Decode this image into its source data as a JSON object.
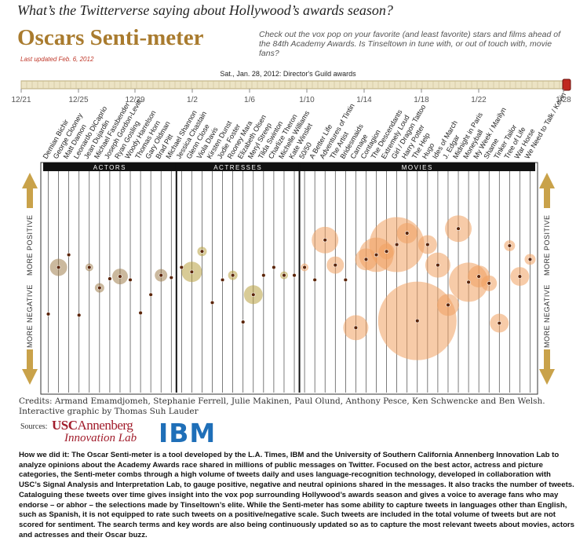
{
  "header": {
    "kicker": "What’s the Twitterverse saying about Hollywood’s awards season?",
    "title": "Oscars Senti-meter",
    "description": "Check out the vox pop on your favorite (and least favorite) stars and films ahead of the 84th Academy Awards. Is Tinseltown in tune with, or out of touch with, movie fans?",
    "updated": "Last updated Feb. 6, 2012"
  },
  "timeline": {
    "label": "Sat., Jan. 28, 2012: Director's Guild awards",
    "ticks": [
      "12/21",
      "12/25",
      "12/29",
      "1/2",
      "1/6",
      "1/10",
      "1/14",
      "1/18",
      "1/22",
      "1/28"
    ]
  },
  "chart_data": {
    "type": "bubble",
    "ylim": [
      -1,
      1
    ],
    "positive_label": "MORE POSITIVE",
    "negative_label": "MORE NEGATIVE",
    "series": [
      {
        "name": "ACTORS",
        "color": "#a0804f",
        "categories": [
          "Demian Bichir",
          "George Clooney",
          "Matt Damon",
          "Leonardo DiCaprio",
          "Jean Dujardin",
          "Michael Fassbender",
          "Joseph Gordon-Levitt",
          "Ryan Gosling",
          "Woody Harrelson",
          "Thomas Horn",
          "Gary Oldman",
          "Brad Pitt",
          "Michael Shannon"
        ],
        "values": [
          -0.31,
          0.1,
          0.21,
          -0.32,
          0.1,
          -0.08,
          0,
          0.02,
          -0.01,
          -0.3,
          -0.14,
          0.03,
          0.01
        ],
        "sizes": [
          0,
          121,
          0,
          0,
          25,
          36,
          0,
          100,
          0,
          0,
          0,
          64,
          0
        ]
      },
      {
        "name": "ACTRESSES",
        "color": "#b8a040",
        "categories": [
          "Jessica Chastain",
          "Glenn Close",
          "Viola Davis",
          "Kirsten Dunst",
          "Jodie Foster",
          "Rooney Mara",
          "Elizabeth Olsen",
          "Meryl Streep",
          "Tilda Swinton",
          "Charlize Theron",
          "Michelle Williams",
          "Kate Winslet"
        ],
        "values": [
          0.1,
          0.06,
          0.24,
          -0.21,
          -0.01,
          0.03,
          -0.38,
          -0.14,
          0.03,
          0.1,
          0.03,
          0.03
        ],
        "sizes": [
          0,
          169,
          36,
          0,
          0,
          36,
          0,
          144,
          0,
          0,
          25,
          0
        ]
      },
      {
        "name": "MOVIES",
        "color": "#f0a060",
        "categories": [
          "50/50",
          "A Better Life",
          "Adventures of Tintin",
          "The Artist",
          "Bridesmaids",
          "Carnage",
          "Contagion",
          "The Descendants",
          "Extremely Loud",
          "Girl / Dragon Tattoo",
          "Harry Potter",
          "The Help",
          "Hugo",
          "Ides of March",
          "J. Edgar",
          "Midnight in Paris",
          "Moneyball",
          "My Week / Marilyn",
          "Shame",
          "Tinker Tailor",
          "Tree of Life",
          "War Horse",
          "We Need to Talk / Kevin"
        ],
        "values": [
          0.1,
          -0.01,
          0.34,
          0.12,
          -0.01,
          -0.43,
          0.17,
          0.21,
          0.24,
          0.3,
          0.4,
          -0.37,
          0.3,
          0.12,
          -0.23,
          0.44,
          -0.03,
          0.02,
          -0.04,
          -0.39,
          0.29,
          0.02,
          0.17
        ],
        "sizes": [
          25,
          0,
          289,
          121,
          0,
          256,
          196,
          484,
          100,
          1225,
          169,
          2500,
          144,
          256,
          196,
          289,
          625,
          196,
          100,
          144,
          49,
          144,
          49
        ]
      }
    ]
  },
  "footer": {
    "credits": "Credits: Armand Emamdjomeh, Stephanie Ferrell, Julie Makinen, Paul Olund, Anthony Pesce, Ken Schwencke and Ben Welsh. Interactive graphic by Thomas Suh Lauder",
    "sources_label": "Sources:",
    "usc": "USC",
    "annenberg": "Annenberg",
    "innovation_lab": "Innovation Lab",
    "ibm": "IBM",
    "how_label": "How we did it:",
    "how_text": "The Oscar Senti-meter is a tool developed by the L.A. Times, IBM and the University of Southern California Annenberg Innovation Lab to analyze opinions about the Academy Awards race shared in millions of public messages on Twitter. Focused on the best actor, actress and picture categories, the Senti-meter combs through a high volume of tweets daily and uses language-recognition technology, developed in collaboration with USC’s Signal Analysis and Interpretation Lab, to gauge positive, negative and neutral opinions shared in the messages. It also tracks the number of tweets. Cataloguing these tweets over time gives insight into the vox pop surrounding Hollywood’s awards season and gives a voice to average fans who may endorse – or abhor – the selections made by Tinseltown’s elite. While the Senti-meter has some ability to capture tweets in languages other than English, such as Spanish, it is not equipped to rate such tweets on a positive/negative scale. Such tweets are included in the total volume of tweets but are not scored for sentiment. The search terms and key words are also being continuously updated so as to capture the most relevant tweets about movies, actors and actresses and their Oscar buzz."
  }
}
